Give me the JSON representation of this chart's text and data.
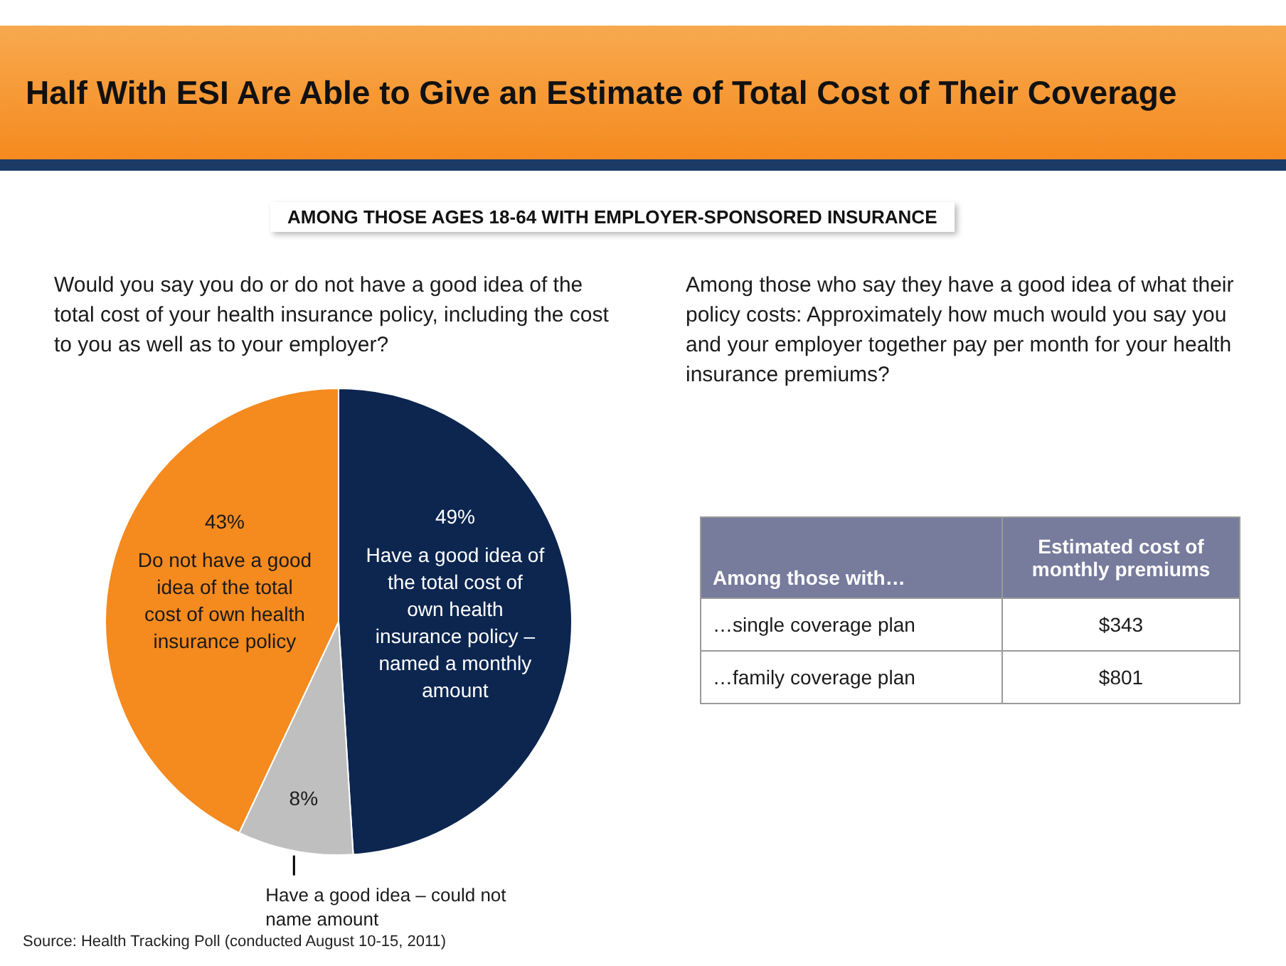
{
  "chart_data": [
    {
      "type": "pie",
      "title": "Half With ESI Are Able to Give an Estimate of Total Cost of Their Coverage",
      "subtitle": "AMONG THOSE AGES 18-64 WITH EMPLOYER-SPONSORED INSURANCE",
      "xlabel": "Would you say you do or do not have a good idea of the total cost of your health insurance policy, including the cost to you as well as to your employer?",
      "categories": [
        "Have a good idea of the total cost of own health insurance policy – named a monthly amount",
        "Have a good idea – could not name amount",
        "Do not have a good idea of the total cost of own health insurance policy"
      ],
      "values": [
        49,
        8,
        43
      ],
      "colors": [
        "#0c2650",
        "#bfbfbf",
        "#f58a1f"
      ],
      "value_labels": [
        "49%",
        "8%",
        "43%"
      ],
      "annotations": [
        "Source: Health Tracking Poll (conducted August 10-15, 2011)"
      ]
    },
    {
      "type": "other",
      "title": "Among those who say they have a good idea of what their policy costs: Approximately how much would you say you and your employer together pay per month for your health insurance premiums?",
      "xlabel": "Among those with…",
      "ylabel": "Estimated cost of monthly premiums",
      "categories": [
        "…single coverage plan",
        "…family coverage plan"
      ],
      "value_labels": [
        "$343",
        "$801"
      ]
    }
  ]
}
